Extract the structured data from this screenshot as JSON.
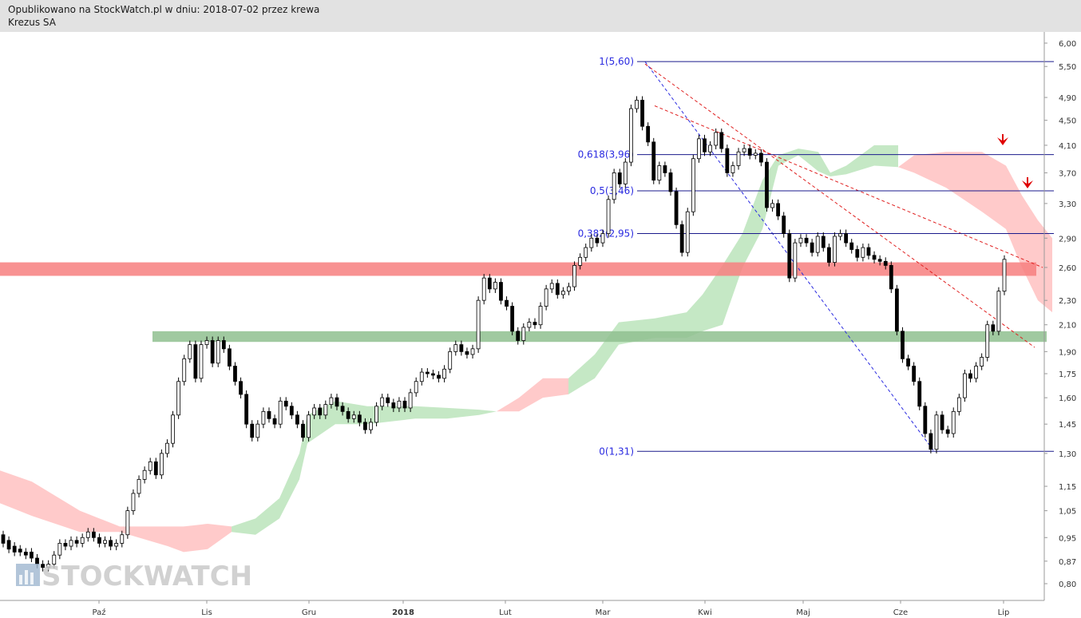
{
  "header": {
    "line1": "Opublikowano na StockWatch.pl w dniu: 2018-07-02 przez krewa",
    "line2": "Krezus SA"
  },
  "watermark": "STOCKWATCH",
  "colors": {
    "cloud_bull": "#bfe6bf",
    "cloud_bear": "#ffc4c4",
    "resistance_zone": "#f77f7f",
    "support_zone": "#8fbf8f",
    "fib_line": "#1a1a8c",
    "red_trend": "#e02020",
    "blue_trend": "#2a2ae0",
    "arrow": "#e00000"
  },
  "chart_data": {
    "type": "candlestick",
    "y_scale": "log",
    "ylim": [
      0.75,
      6.2
    ],
    "y_ticks": [
      "6,00",
      "5,50",
      "4,90",
      "4,50",
      "4,10",
      "3,70",
      "3,30",
      "2,90",
      "2,60",
      "2,30",
      "2,10",
      "1,90",
      "1,75",
      "1,60",
      "1,45",
      "1,30",
      "1,15",
      "1,05",
      "0,95",
      "0,87",
      "0,80"
    ],
    "x_labels": [
      "Paź",
      "Lis",
      "Gru",
      "2018",
      "Lut",
      "Mar",
      "Kwi",
      "Maj",
      "Cze",
      "Lip"
    ],
    "fibonacci": [
      {
        "label": "1(5,60)",
        "level": 5.6
      },
      {
        "label": "0,618(3,96)",
        "level": 3.96
      },
      {
        "label": "0,5(3,46)",
        "level": 3.46
      },
      {
        "label": "0,382(2,95)",
        "level": 2.95
      },
      {
        "label": "0(1,31)",
        "level": 1.31
      }
    ],
    "zones": [
      {
        "name": "resistance",
        "from": 2.52,
        "to": 2.65
      },
      {
        "name": "support",
        "from": 1.97,
        "to": 2.05
      }
    ],
    "trendlines": [
      {
        "style": "red-dashed",
        "from": [
          "Mar",
          5.55
        ],
        "to": [
          "Lip",
          1.93
        ]
      },
      {
        "style": "red-dashed",
        "from": [
          "Mar",
          4.75
        ],
        "to": [
          "Lip",
          2.6
        ]
      },
      {
        "style": "blue-dashed",
        "from": [
          "Mar",
          5.6
        ],
        "to": [
          "Cze",
          1.31
        ]
      }
    ],
    "arrows": 2,
    "candles": [
      [
        0.96,
        0.93
      ],
      [
        0.94,
        0.91
      ],
      [
        0.92,
        0.9
      ],
      [
        0.91,
        0.9
      ],
      [
        0.9,
        0.89
      ],
      [
        0.9,
        0.88
      ],
      [
        0.88,
        0.86
      ],
      [
        0.86,
        0.85
      ],
      [
        0.85,
        0.86
      ],
      [
        0.86,
        0.89
      ],
      [
        0.89,
        0.93
      ],
      [
        0.93,
        0.92
      ],
      [
        0.92,
        0.94
      ],
      [
        0.94,
        0.93
      ],
      [
        0.93,
        0.95
      ],
      [
        0.95,
        0.97
      ],
      [
        0.97,
        0.95
      ],
      [
        0.95,
        0.93
      ],
      [
        0.93,
        0.94
      ],
      [
        0.94,
        0.92
      ],
      [
        0.92,
        0.93
      ],
      [
        0.93,
        0.96
      ],
      [
        0.96,
        1.05
      ],
      [
        1.05,
        1.12
      ],
      [
        1.12,
        1.18
      ],
      [
        1.18,
        1.22
      ],
      [
        1.22,
        1.26
      ],
      [
        1.26,
        1.2
      ],
      [
        1.2,
        1.3
      ],
      [
        1.3,
        1.35
      ],
      [
        1.35,
        1.5
      ],
      [
        1.5,
        1.7
      ],
      [
        1.7,
        1.85
      ],
      [
        1.85,
        1.95
      ],
      [
        1.95,
        1.72
      ],
      [
        1.72,
        1.95
      ],
      [
        1.95,
        1.98
      ],
      [
        1.98,
        1.82
      ],
      [
        1.82,
        1.98
      ],
      [
        1.98,
        1.92
      ],
      [
        1.92,
        1.8
      ],
      [
        1.8,
        1.7
      ],
      [
        1.7,
        1.62
      ],
      [
        1.62,
        1.45
      ],
      [
        1.45,
        1.38
      ],
      [
        1.38,
        1.45
      ],
      [
        1.45,
        1.52
      ],
      [
        1.52,
        1.48
      ],
      [
        1.48,
        1.45
      ],
      [
        1.45,
        1.58
      ],
      [
        1.58,
        1.55
      ],
      [
        1.55,
        1.5
      ],
      [
        1.5,
        1.45
      ],
      [
        1.45,
        1.38
      ],
      [
        1.38,
        1.5
      ],
      [
        1.5,
        1.54
      ],
      [
        1.54,
        1.5
      ],
      [
        1.5,
        1.56
      ],
      [
        1.56,
        1.6
      ],
      [
        1.6,
        1.55
      ],
      [
        1.55,
        1.52
      ],
      [
        1.52,
        1.48
      ],
      [
        1.48,
        1.5
      ],
      [
        1.5,
        1.46
      ],
      [
        1.46,
        1.42
      ],
      [
        1.42,
        1.46
      ],
      [
        1.46,
        1.55
      ],
      [
        1.55,
        1.6
      ],
      [
        1.6,
        1.57
      ],
      [
        1.57,
        1.54
      ],
      [
        1.54,
        1.58
      ],
      [
        1.58,
        1.54
      ],
      [
        1.54,
        1.63
      ],
      [
        1.63,
        1.7
      ],
      [
        1.7,
        1.76
      ],
      [
        1.76,
        1.75
      ],
      [
        1.75,
        1.74
      ],
      [
        1.74,
        1.72
      ],
      [
        1.72,
        1.78
      ],
      [
        1.78,
        1.9
      ],
      [
        1.9,
        1.95
      ],
      [
        1.95,
        1.9
      ],
      [
        1.9,
        1.88
      ],
      [
        1.88,
        1.92
      ],
      [
        1.92,
        2.3
      ],
      [
        2.3,
        2.5
      ],
      [
        2.5,
        2.4
      ],
      [
        2.4,
        2.46
      ],
      [
        2.46,
        2.3
      ],
      [
        2.3,
        2.25
      ],
      [
        2.25,
        2.05
      ],
      [
        2.05,
        1.98
      ],
      [
        1.98,
        2.08
      ],
      [
        2.08,
        2.12
      ],
      [
        2.12,
        2.1
      ],
      [
        2.1,
        2.25
      ],
      [
        2.25,
        2.4
      ],
      [
        2.4,
        2.45
      ],
      [
        2.45,
        2.35
      ],
      [
        2.35,
        2.38
      ],
      [
        2.38,
        2.42
      ],
      [
        2.42,
        2.62
      ],
      [
        2.62,
        2.7
      ],
      [
        2.7,
        2.8
      ],
      [
        2.8,
        2.9
      ],
      [
        2.9,
        2.85
      ],
      [
        2.85,
        2.95
      ],
      [
        2.95,
        3.35
      ],
      [
        3.35,
        3.7
      ],
      [
        3.7,
        3.55
      ],
      [
        3.55,
        3.85
      ],
      [
        3.85,
        4.7
      ],
      [
        4.7,
        4.85
      ],
      [
        4.85,
        4.4
      ],
      [
        4.4,
        4.15
      ],
      [
        4.15,
        3.6
      ],
      [
        3.6,
        3.8
      ],
      [
        3.8,
        3.7
      ],
      [
        3.7,
        3.45
      ],
      [
        3.45,
        3.05
      ],
      [
        3.05,
        2.75
      ],
      [
        2.75,
        3.2
      ],
      [
        3.2,
        3.9
      ],
      [
        3.9,
        4.2
      ],
      [
        4.2,
        4.0
      ],
      [
        4.0,
        4.1
      ],
      [
        4.1,
        4.3
      ],
      [
        4.3,
        4.05
      ],
      [
        4.05,
        3.7
      ],
      [
        3.7,
        3.8
      ],
      [
        3.8,
        4.0
      ],
      [
        4.0,
        4.05
      ],
      [
        4.05,
        3.95
      ],
      [
        3.95,
        3.98
      ],
      [
        3.98,
        3.85
      ],
      [
        3.85,
        3.25
      ],
      [
        3.25,
        3.3
      ],
      [
        3.3,
        3.15
      ],
      [
        3.15,
        2.95
      ],
      [
        2.95,
        2.5
      ],
      [
        2.5,
        2.85
      ],
      [
        2.85,
        2.9
      ],
      [
        2.9,
        2.85
      ],
      [
        2.85,
        2.75
      ],
      [
        2.75,
        2.92
      ],
      [
        2.92,
        2.8
      ],
      [
        2.8,
        2.65
      ],
      [
        2.65,
        2.92
      ],
      [
        2.92,
        2.95
      ],
      [
        2.95,
        2.85
      ],
      [
        2.85,
        2.78
      ],
      [
        2.78,
        2.7
      ],
      [
        2.7,
        2.8
      ],
      [
        2.8,
        2.72
      ],
      [
        2.72,
        2.68
      ],
      [
        2.68,
        2.66
      ],
      [
        2.66,
        2.62
      ],
      [
        2.62,
        2.4
      ],
      [
        2.4,
        2.05
      ],
      [
        2.05,
        1.85
      ],
      [
        1.85,
        1.8
      ],
      [
        1.8,
        1.7
      ],
      [
        1.7,
        1.55
      ],
      [
        1.55,
        1.4
      ],
      [
        1.4,
        1.32
      ],
      [
        1.32,
        1.5
      ],
      [
        1.5,
        1.42
      ],
      [
        1.42,
        1.4
      ],
      [
        1.4,
        1.52
      ],
      [
        1.52,
        1.6
      ],
      [
        1.6,
        1.75
      ],
      [
        1.75,
        1.72
      ],
      [
        1.72,
        1.8
      ],
      [
        1.8,
        1.86
      ],
      [
        1.86,
        2.1
      ],
      [
        2.1,
        2.05
      ],
      [
        2.05,
        2.38
      ],
      [
        2.38,
        2.68
      ]
    ]
  }
}
